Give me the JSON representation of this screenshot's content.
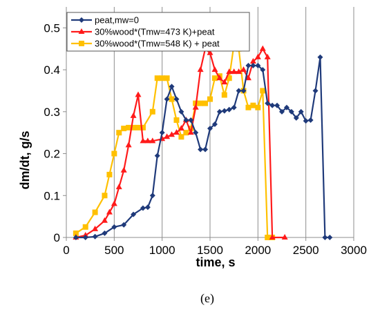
{
  "chart_data": {
    "type": "line",
    "xlabel": "time, s",
    "ylabel": "dm/dt, g/s",
    "caption": "(e)",
    "xlim": [
      0,
      3000
    ],
    "ylim": [
      0,
      0.55
    ],
    "xticks": [
      "0",
      "500",
      "1000",
      "1500",
      "2000",
      "2500",
      "3000"
    ],
    "yticks": [
      "0",
      "0.1",
      "0.2",
      "0.3",
      "0.4",
      "0.5"
    ],
    "vertical_gridlines": true,
    "legend_position": "top-left",
    "series": [
      {
        "name": "peat,mw=0",
        "color": "#1f3a7a",
        "marker": "diamond",
        "points": [
          [
            100,
            0
          ],
          [
            200,
            0
          ],
          [
            300,
            0.002
          ],
          [
            400,
            0.01
          ],
          [
            500,
            0.025
          ],
          [
            600,
            0.03
          ],
          [
            700,
            0.055
          ],
          [
            800,
            0.07
          ],
          [
            850,
            0.072
          ],
          [
            900,
            0.1
          ],
          [
            950,
            0.195
          ],
          [
            1000,
            0.25
          ],
          [
            1050,
            0.33
          ],
          [
            1100,
            0.36
          ],
          [
            1150,
            0.33
          ],
          [
            1200,
            0.3
          ],
          [
            1250,
            0.28
          ],
          [
            1300,
            0.28
          ],
          [
            1350,
            0.25
          ],
          [
            1400,
            0.21
          ],
          [
            1450,
            0.21
          ],
          [
            1500,
            0.26
          ],
          [
            1550,
            0.27
          ],
          [
            1600,
            0.3
          ],
          [
            1650,
            0.302
          ],
          [
            1700,
            0.305
          ],
          [
            1750,
            0.31
          ],
          [
            1800,
            0.35
          ],
          [
            1850,
            0.35
          ],
          [
            1900,
            0.41
          ],
          [
            1950,
            0.41
          ],
          [
            2000,
            0.41
          ],
          [
            2050,
            0.4
          ],
          [
            2100,
            0.32
          ],
          [
            2150,
            0.315
          ],
          [
            2200,
            0.315
          ],
          [
            2250,
            0.3
          ],
          [
            2300,
            0.31
          ],
          [
            2350,
            0.3
          ],
          [
            2400,
            0.285
          ],
          [
            2450,
            0.3
          ],
          [
            2500,
            0.278
          ],
          [
            2550,
            0.28
          ],
          [
            2600,
            0.35
          ],
          [
            2650,
            0.43
          ],
          [
            2700,
            0
          ],
          [
            2750,
            0
          ]
        ]
      },
      {
        "name": "30%wood*(Tmw=473 K)+peat",
        "color": "#ff1a1a",
        "marker": "triangle",
        "points": [
          [
            100,
            0
          ],
          [
            200,
            0.005
          ],
          [
            300,
            0.02
          ],
          [
            400,
            0.04
          ],
          [
            450,
            0.06
          ],
          [
            500,
            0.08
          ],
          [
            550,
            0.12
          ],
          [
            600,
            0.16
          ],
          [
            650,
            0.22
          ],
          [
            700,
            0.29
          ],
          [
            750,
            0.34
          ],
          [
            800,
            0.23
          ],
          [
            850,
            0.23
          ],
          [
            900,
            0.23
          ],
          [
            1000,
            0.235
          ],
          [
            1050,
            0.24
          ],
          [
            1100,
            0.245
          ],
          [
            1150,
            0.25
          ],
          [
            1200,
            0.26
          ],
          [
            1250,
            0.28
          ],
          [
            1300,
            0.25
          ],
          [
            1350,
            0.31
          ],
          [
            1400,
            0.4
          ],
          [
            1450,
            0.45
          ],
          [
            1500,
            0.44
          ],
          [
            1550,
            0.4
          ],
          [
            1600,
            0.38
          ],
          [
            1650,
            0.37
          ],
          [
            1700,
            0.395
          ],
          [
            1750,
            0.395
          ],
          [
            1800,
            0.395
          ],
          [
            1850,
            0.4
          ],
          [
            1900,
            0.38
          ],
          [
            1950,
            0.42
          ],
          [
            2000,
            0.43
          ],
          [
            2050,
            0.45
          ],
          [
            2100,
            0.43
          ],
          [
            2150,
            0
          ],
          [
            2280,
            0
          ]
        ]
      },
      {
        "name": "30%wood*(Tmw=548 K) + peat",
        "color": "#ffc000",
        "marker": "square",
        "points": [
          [
            100,
            0.01
          ],
          [
            200,
            0.025
          ],
          [
            300,
            0.06
          ],
          [
            400,
            0.1
          ],
          [
            450,
            0.15
          ],
          [
            500,
            0.2
          ],
          [
            550,
            0.25
          ],
          [
            600,
            0.26
          ],
          [
            650,
            0.262
          ],
          [
            700,
            0.262
          ],
          [
            750,
            0.262
          ],
          [
            800,
            0.262
          ],
          [
            900,
            0.3
          ],
          [
            950,
            0.38
          ],
          [
            1000,
            0.38
          ],
          [
            1050,
            0.38
          ],
          [
            1100,
            0.33
          ],
          [
            1150,
            0.28
          ],
          [
            1200,
            0.24
          ],
          [
            1250,
            0.25
          ],
          [
            1300,
            0.26
          ],
          [
            1350,
            0.32
          ],
          [
            1400,
            0.32
          ],
          [
            1450,
            0.32
          ],
          [
            1500,
            0.33
          ],
          [
            1550,
            0.38
          ],
          [
            1600,
            0.385
          ],
          [
            1650,
            0.34
          ],
          [
            1700,
            0.38
          ],
          [
            1750,
            0.46
          ],
          [
            1800,
            0.45
          ],
          [
            1850,
            0.35
          ],
          [
            1900,
            0.31
          ],
          [
            1950,
            0.315
          ],
          [
            2000,
            0.31
          ],
          [
            2050,
            0.35
          ],
          [
            2100,
            0
          ],
          [
            2150,
            0
          ]
        ]
      }
    ]
  }
}
